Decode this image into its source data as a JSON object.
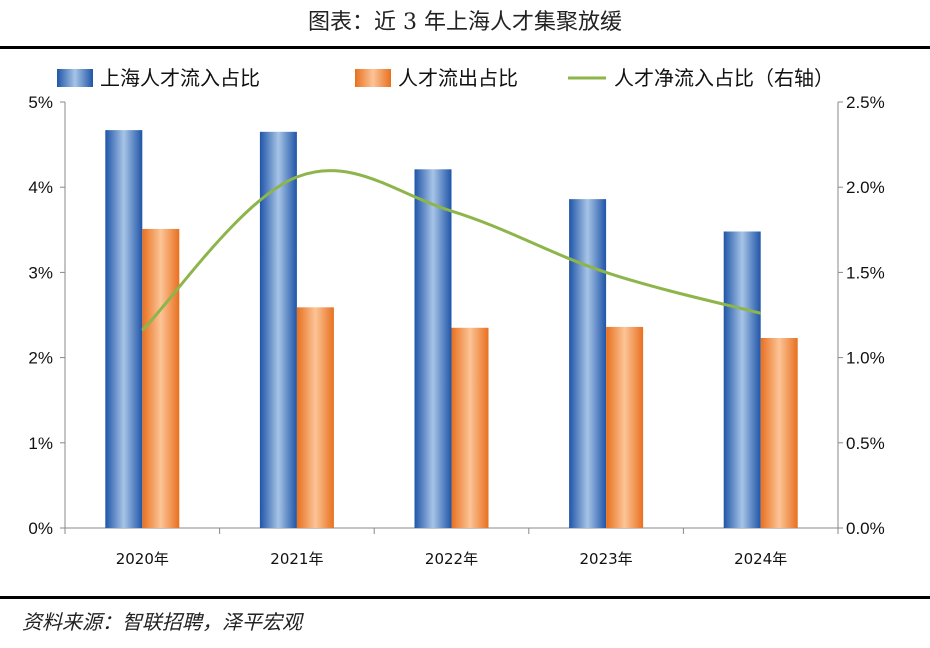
{
  "header": {
    "title": "图表：近 3 年上海人才集聚放缓"
  },
  "footer": {
    "source": "资料来源：智联招聘，泽平宏观"
  },
  "chart_data": {
    "type": "bar",
    "categories": [
      "2020年",
      "2021年",
      "2022年",
      "2023年",
      "2024年"
    ],
    "series": [
      {
        "name": "上海人才流入占比",
        "kind": "bar",
        "axis": "left",
        "color": "#2e6fc0",
        "values": [
          4.67,
          4.65,
          4.21,
          3.86,
          3.48
        ]
      },
      {
        "name": "人才流出占比",
        "kind": "bar",
        "axis": "left",
        "color": "#f07e2c",
        "values": [
          3.51,
          2.59,
          2.35,
          2.36,
          2.23
        ]
      },
      {
        "name": "人才净流入占比（右轴）",
        "kind": "line",
        "axis": "right",
        "color": "#8db54b",
        "values": [
          1.16,
          2.06,
          1.86,
          1.5,
          1.26
        ]
      }
    ],
    "y_left": {
      "ylim": [
        0,
        5
      ],
      "ticks": [
        0,
        1,
        2,
        3,
        4,
        5
      ],
      "tick_labels": [
        "0%",
        "1%",
        "2%",
        "3%",
        "4%",
        "5%"
      ]
    },
    "y_right": {
      "ylim": [
        0,
        2.5
      ],
      "ticks": [
        0,
        0.5,
        1.0,
        1.5,
        2.0,
        2.5
      ],
      "tick_labels": [
        "0.0%",
        "0.5%",
        "1.0%",
        "1.5%",
        "2.0%",
        "2.5%"
      ]
    },
    "legend_position": "top",
    "grid": false
  }
}
